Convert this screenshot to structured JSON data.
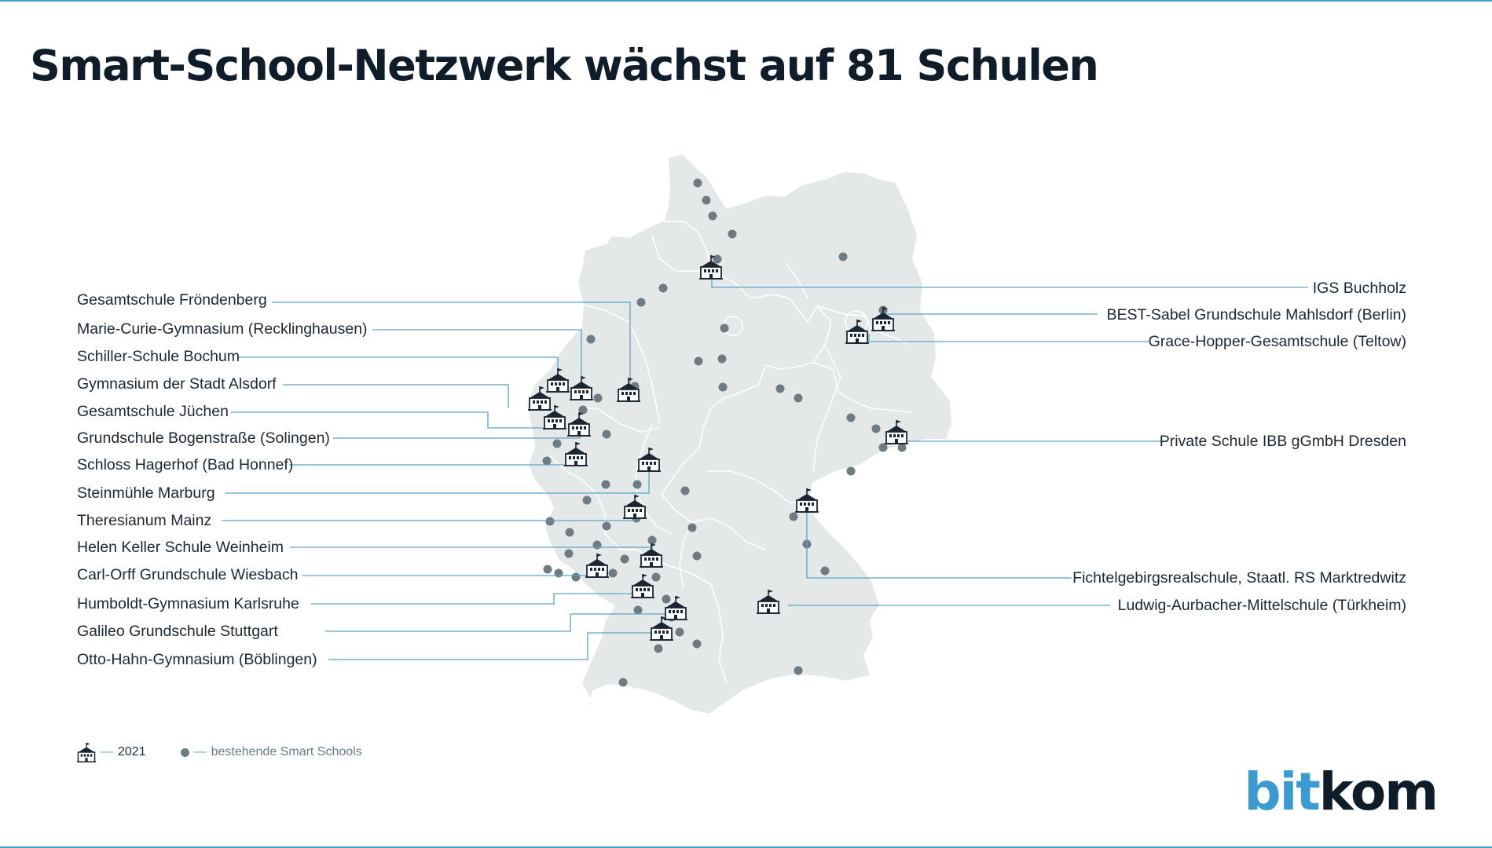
{
  "title": "Smart-School-Netzwerk wächst auf 81 Schulen",
  "logo": {
    "part1": "bit",
    "part2": "kom"
  },
  "legend": {
    "new_label": "2021",
    "existing_label": "bestehende Smart Schools",
    "new_icon": "school-building-icon",
    "existing_icon": "grey-dot-icon"
  },
  "colors": {
    "map_fill": "#e4e8e8",
    "leader_line": "#5aa4c6",
    "dot": "#6e7b82",
    "icon": "#1b2633",
    "logo_accent": "#3a9bd2"
  },
  "labels_left": [
    "Gesamtschule Fröndenberg",
    "Marie-Curie-Gymnasium (Recklinghausen)",
    "Schiller-Schule Bochum",
    "Gymnasium der Stadt Alsdorf",
    "Gesamtschule Jüchen",
    "Grundschule Bogenstraße (Solingen)",
    "Schloss Hagerhof (Bad Honnef)",
    "Steinmühle Marburg",
    "Theresianum Mainz",
    "Helen Keller Schule Weinheim",
    "Carl-Orff Grundschule Wiesbach",
    "Humboldt-Gymnasium Karlsruhe",
    "Galileo Grundschule Stuttgart",
    "Otto-Hahn-Gymnasium (Böblingen)"
  ],
  "labels_right": [
    "IGS Buchholz",
    "BEST-Sabel Grundschule Mahlsdorf (Berlin)",
    "Grace-Hopper-Gesamtschule (Teltow)",
    "Private Schule IBB gGmbH Dresden",
    "Fichtelgebirgsrealschule, Staatl. RS Marktredwitz",
    "Ludwig-Aurbacher-Mittelschule (Türkheim)"
  ]
}
